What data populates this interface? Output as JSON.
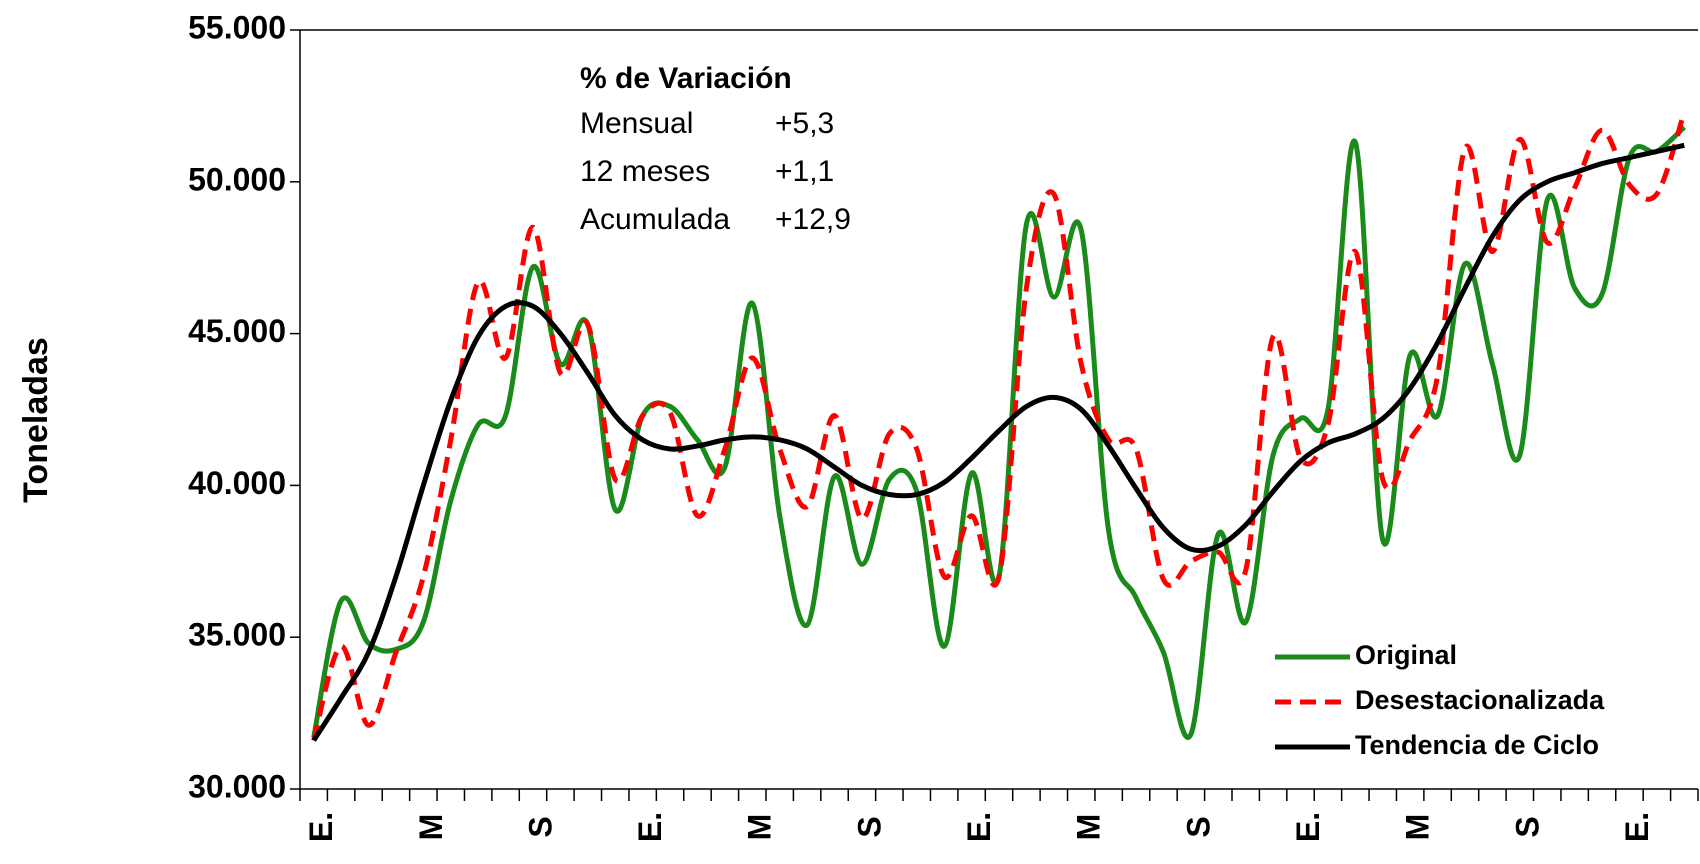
{
  "chart_data": {
    "type": "line",
    "ylabel": "Toneladas",
    "annotation": {
      "title": "% de Variación",
      "rows": [
        [
          "Mensual",
          "+5,3"
        ],
        [
          "12 meses",
          "+1,1"
        ],
        [
          "Acumulada",
          "+12,9"
        ]
      ]
    },
    "categories": [
      "E.",
      null,
      null,
      null,
      "M",
      null,
      null,
      null,
      "S",
      null,
      null,
      null,
      "E.",
      null,
      null,
      null,
      "M",
      null,
      null,
      null,
      "S",
      null,
      null,
      null,
      "E.",
      null,
      null,
      null,
      "M",
      null,
      null,
      null,
      "S",
      null,
      null,
      null,
      "E.",
      null,
      null,
      null,
      "M",
      null,
      null,
      null,
      "S",
      null,
      null,
      null,
      "E.",
      null,
      null
    ],
    "series": [
      {
        "name": "Original",
        "color": "#1a8a1a",
        "dash": false,
        "values": [
          31700,
          36200,
          34800,
          34600,
          35500,
          39500,
          42000,
          42300,
          47200,
          44000,
          45300,
          39200,
          42300,
          42600,
          41500,
          40600,
          46000,
          39000,
          35400,
          40300,
          37400,
          40200,
          39800,
          34700,
          40400,
          37000,
          48600,
          46200,
          48400,
          38500,
          36300,
          34500,
          31800,
          38400,
          35500,
          41000,
          42200,
          42500,
          51300,
          38200,
          44300,
          42300,
          47300,
          44000,
          41000,
          49400,
          46500,
          46300,
          50800,
          51000,
          51800
        ]
      },
      {
        "name": "Desestacionalizada",
        "color": "#ff0000",
        "dash": true,
        "values": [
          31600,
          34700,
          32100,
          34500,
          37000,
          41500,
          46700,
          44200,
          48500,
          43700,
          45300,
          40200,
          42300,
          42400,
          39000,
          41200,
          44200,
          41200,
          39300,
          42300,
          38900,
          41700,
          41200,
          37000,
          39000,
          37000,
          46500,
          49600,
          44000,
          41500,
          41200,
          36900,
          37500,
          37800,
          37200,
          44900,
          40900,
          42000,
          47700,
          40200,
          41500,
          43600,
          51100,
          47700,
          51400,
          48000,
          49800,
          51700,
          49900,
          49600,
          52300
        ]
      },
      {
        "name": "Tendencia de Ciclo",
        "color": "#000000",
        "dash": false,
        "values": [
          31600,
          33000,
          34500,
          37000,
          40000,
          42800,
          44900,
          45900,
          45900,
          45000,
          43700,
          42300,
          41500,
          41200,
          41300,
          41500,
          41600,
          41500,
          41200,
          40600,
          40000,
          39700,
          39700,
          40100,
          40900,
          41800,
          42600,
          42900,
          42500,
          41300,
          39900,
          38600,
          37900,
          38000,
          38700,
          39800,
          40800,
          41400,
          41700,
          42200,
          43200,
          44700,
          46500,
          48200,
          49400,
          50000,
          50300,
          50600,
          50800,
          51000,
          51200
        ]
      }
    ],
    "ylim": [
      30000,
      55000
    ],
    "yticks": [
      {
        "value": 30000,
        "label": "30.000"
      },
      {
        "value": 35000,
        "label": "35.000"
      },
      {
        "value": 40000,
        "label": "40.000"
      },
      {
        "value": 45000,
        "label": "45.000"
      },
      {
        "value": 50000,
        "label": "50.000"
      },
      {
        "value": 55000,
        "label": "55.000"
      }
    ],
    "legend": "lower right"
  }
}
